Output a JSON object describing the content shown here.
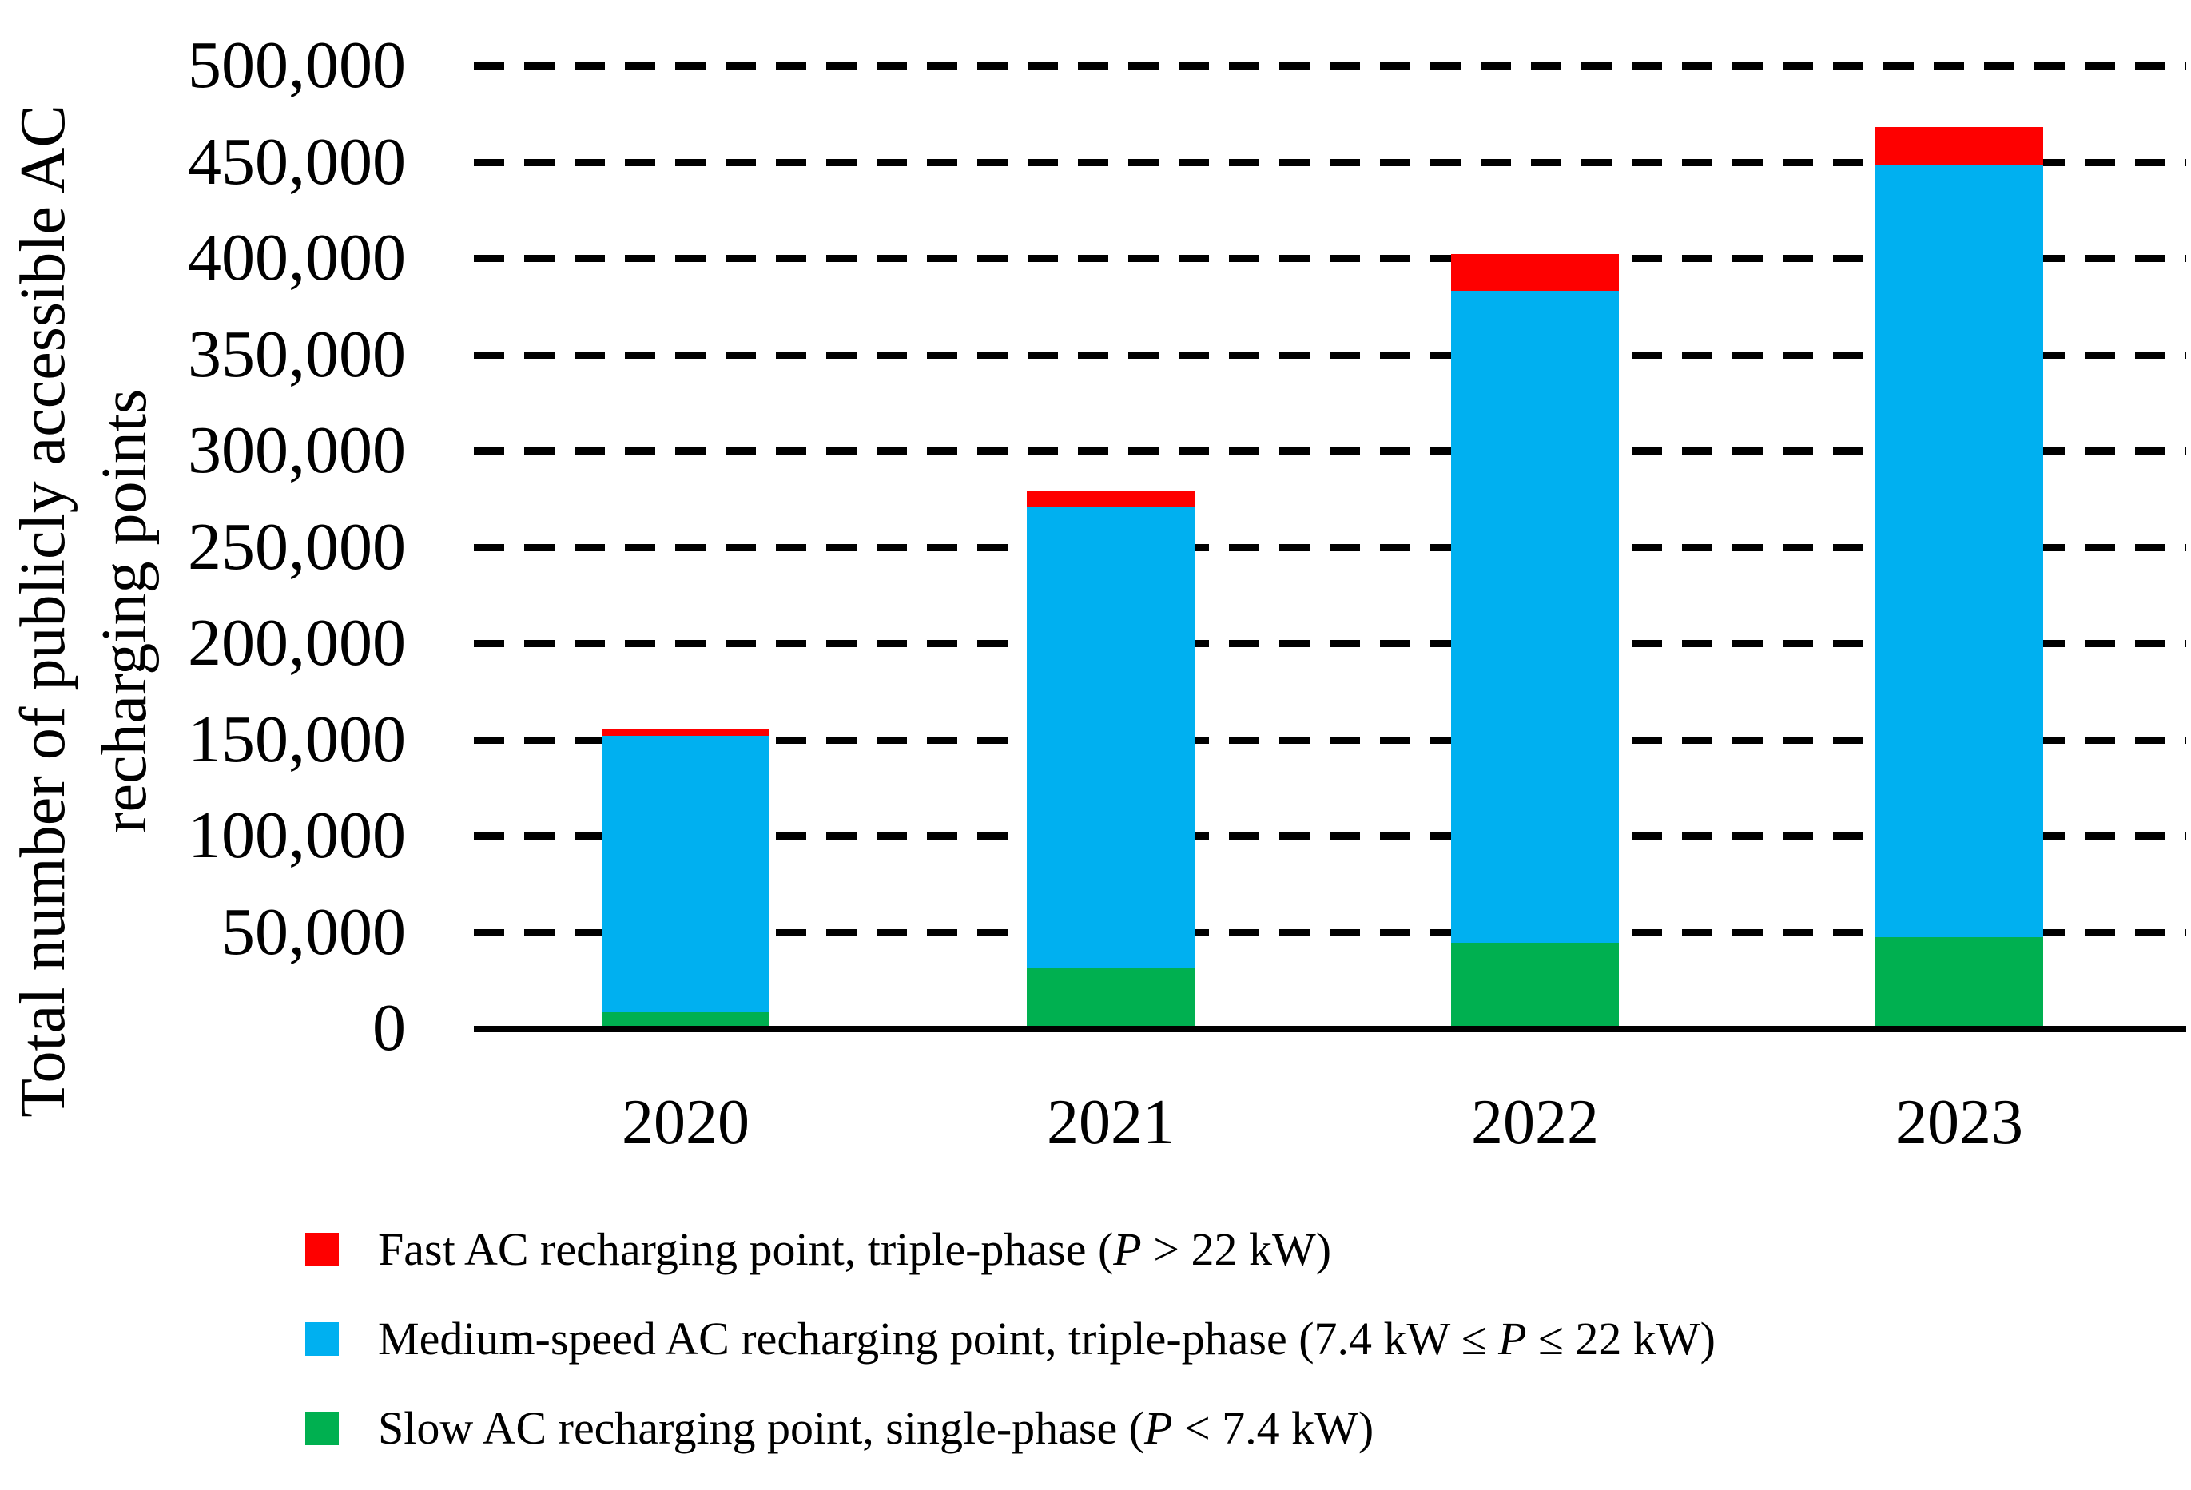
{
  "y_axis": {
    "label_line1": "Total number of publicly accessible AC",
    "label_line2": "recharging points",
    "tick_labels": [
      "500,000",
      "450,000",
      "400,000",
      "350,000",
      "300,000",
      "250,000",
      "200,000",
      "150,000",
      "100,000",
      "50,000",
      "0"
    ]
  },
  "x_axis": {
    "tick_labels": [
      "2020",
      "2021",
      "2022",
      "2023"
    ]
  },
  "legend": {
    "items": [
      {
        "color": "#FE0000",
        "pre": "Fast AC recharging point, triple-phase (",
        "var": "P",
        "post": " > 22 kW)"
      },
      {
        "color": "#00B0F0",
        "pre": "Medium-speed AC recharging point, triple-phase (7.4 kW ≤ ",
        "var": "P",
        "post": " ≤ 22 kW)"
      },
      {
        "color": "#00B050",
        "pre": "Slow AC recharging point, single-phase (",
        "var": "P",
        "post": " < 7.4 kW)"
      }
    ]
  },
  "chart_data": {
    "type": "bar",
    "stacked": true,
    "title": "",
    "xlabel": "",
    "ylabel": "Total number of publicly accessible AC recharging points",
    "categories": [
      "2020",
      "2021",
      "2022",
      "2023"
    ],
    "series": [
      {
        "name": "Slow AC recharging point, single-phase (P < 7.4 kW)",
        "color": "#00B050",
        "values": [
          8400,
          31000,
          44500,
          47500
        ]
      },
      {
        "name": "Medium-speed AC recharging point, triple-phase (7.4 kW ≤ P ≤ 22 kW)",
        "color": "#00B0F0",
        "values": [
          143500,
          240000,
          338500,
          401000
        ]
      },
      {
        "name": "Fast AC recharging point, triple-phase (P > 22 kW)",
        "color": "#FE0000",
        "values": [
          3300,
          8300,
          19000,
          19500
        ]
      }
    ],
    "stack_totals": [
      155200,
      279300,
      402000,
      468000
    ],
    "ylim": [
      0,
      500000
    ],
    "ytick_step": 50000,
    "grid": "horizontal-dashed",
    "legend_position": "bottom-left"
  }
}
